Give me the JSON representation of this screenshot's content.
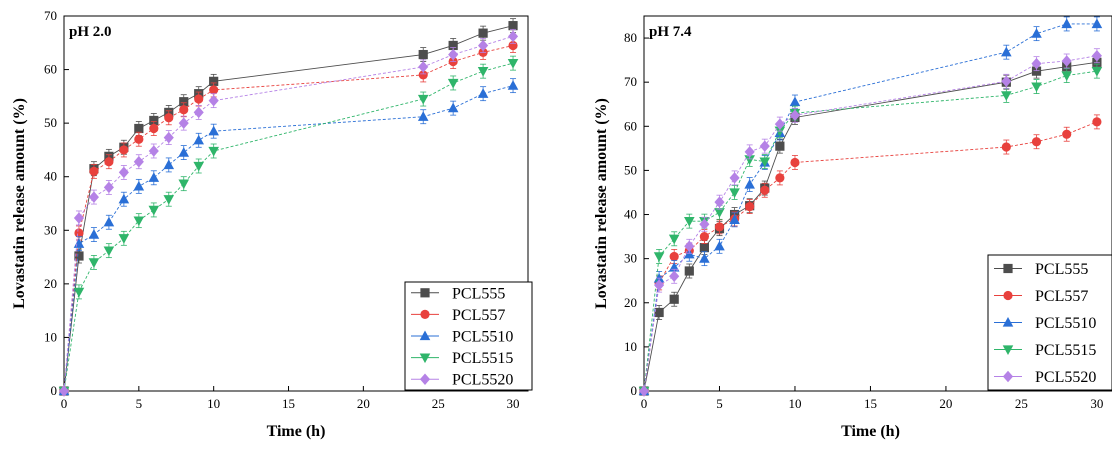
{
  "chart_data": [
    {
      "type": "line",
      "title": "pH 2.0",
      "xlabel": "Time (h)",
      "ylabel": "Lovastatin release amount (%)",
      "xlim": [
        0,
        31
      ],
      "ylim": [
        0,
        70
      ],
      "xticks": [
        0,
        5,
        10,
        15,
        20,
        25,
        30
      ],
      "yticks": [
        0,
        10,
        20,
        30,
        40,
        50,
        60,
        70
      ],
      "grid": false,
      "legend_position": "bottom-right",
      "x": [
        0,
        1,
        2,
        3,
        4,
        5,
        6,
        7,
        8,
        9,
        10,
        24,
        26,
        28,
        30
      ],
      "series": [
        {
          "name": "PCL555",
          "values": [
            0,
            25.2,
            41.5,
            43.8,
            45.5,
            49.0,
            50.5,
            52.0,
            54.0,
            55.5,
            57.8,
            62.8,
            64.5,
            66.8,
            68.2
          ]
        },
        {
          "name": "PCL557",
          "values": [
            0,
            29.5,
            41.0,
            42.8,
            45.0,
            47.0,
            49.0,
            51.0,
            52.5,
            54.5,
            56.2,
            59.0,
            61.5,
            63.2,
            64.5
          ]
        },
        {
          "name": "PCL5510",
          "values": [
            0,
            27.5,
            29.2,
            31.5,
            35.8,
            38.2,
            39.8,
            42.2,
            44.5,
            46.8,
            48.5,
            51.2,
            52.8,
            55.5,
            57.0
          ]
        },
        {
          "name": "PCL5515",
          "values": [
            0,
            18.5,
            24.0,
            26.2,
            28.5,
            31.8,
            33.8,
            35.8,
            38.7,
            42.0,
            44.8,
            54.5,
            57.5,
            59.7,
            61.2
          ]
        },
        {
          "name": "PCL5520",
          "values": [
            0,
            32.3,
            36.2,
            38.0,
            40.8,
            42.8,
            44.8,
            47.3,
            50.0,
            52.0,
            54.2,
            60.5,
            62.8,
            64.5,
            66.2
          ]
        }
      ]
    },
    {
      "type": "line",
      "title": "pH 7.4",
      "xlabel": "Time (h)",
      "ylabel": "Lovastatin release amount (%)",
      "xlim": [
        0,
        31
      ],
      "ylim": [
        0,
        85
      ],
      "xticks": [
        0,
        5,
        10,
        15,
        20,
        25,
        30
      ],
      "yticks": [
        0,
        10,
        20,
        30,
        40,
        50,
        60,
        70,
        80
      ],
      "grid": false,
      "legend_position": "bottom-right",
      "x": [
        0,
        1,
        2,
        3,
        4,
        5,
        6,
        7,
        8,
        9,
        10,
        24,
        26,
        28,
        30
      ],
      "series": [
        {
          "name": "PCL555",
          "values": [
            0,
            17.8,
            20.8,
            27.2,
            32.5,
            36.8,
            40.0,
            42.0,
            46.0,
            55.5,
            62.0,
            70.0,
            72.5,
            73.5,
            74.5
          ]
        },
        {
          "name": "PCL557",
          "values": [
            0,
            24.5,
            30.5,
            31.8,
            35.0,
            37.2,
            39.0,
            41.8,
            45.5,
            48.3,
            51.8,
            55.3,
            56.5,
            58.2,
            61.0
          ]
        },
        {
          "name": "PCL5510",
          "values": [
            0,
            25.5,
            28.0,
            31.0,
            30.0,
            32.8,
            38.8,
            46.8,
            51.8,
            58.5,
            65.5,
            76.8,
            81.0,
            83.2,
            83.2
          ]
        },
        {
          "name": "PCL5515",
          "values": [
            0,
            30.5,
            34.5,
            38.5,
            38.5,
            40.5,
            45.0,
            52.5,
            52.0,
            59.0,
            63.0,
            67.0,
            69.0,
            71.5,
            72.5
          ]
        },
        {
          "name": "PCL5520",
          "values": [
            0,
            24.0,
            26.0,
            32.8,
            37.8,
            42.8,
            48.3,
            54.2,
            55.5,
            60.5,
            62.5,
            70.2,
            74.2,
            74.8,
            76.0
          ]
        }
      ]
    }
  ],
  "series_styles": [
    {
      "marker": "square",
      "color": "#4d4d4d"
    },
    {
      "marker": "circle",
      "color": "#e8413d"
    },
    {
      "marker": "triangle-up",
      "color": "#2a6fd6"
    },
    {
      "marker": "triangle-down",
      "color": "#2fb56a"
    },
    {
      "marker": "diamond",
      "color": "#b582e6"
    }
  ]
}
